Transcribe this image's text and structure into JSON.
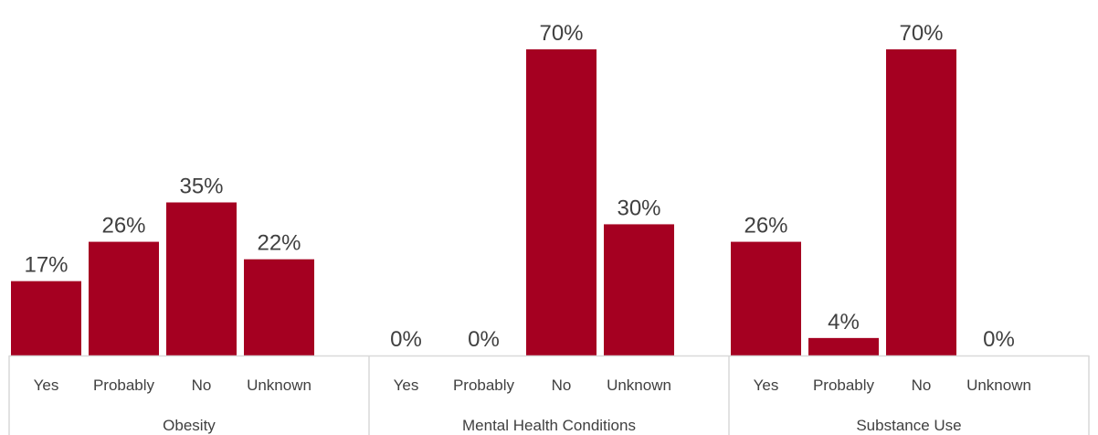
{
  "chart_data": {
    "type": "bar",
    "title": "",
    "xlabel": "",
    "ylabel": "",
    "ylim": [
      0,
      70
    ],
    "grid": false,
    "legend": "none",
    "bar_color": "#A50021",
    "axis_color": "#D9D9D9",
    "text_color": "#404040",
    "categories": [
      "Yes",
      "Probably",
      "No",
      "Unknown"
    ],
    "groups": [
      {
        "name": "Obesity",
        "values": [
          17,
          26,
          35,
          22
        ],
        "labels": [
          "17%",
          "26%",
          "35%",
          "22%"
        ]
      },
      {
        "name": "Mental Health Conditions",
        "values": [
          0,
          0,
          70,
          30
        ],
        "labels": [
          "0%",
          "0%",
          "70%",
          "30%"
        ]
      },
      {
        "name": "Substance Use",
        "values": [
          26,
          4,
          70,
          0
        ],
        "labels": [
          "26%",
          "4%",
          "70%",
          "0%"
        ]
      }
    ]
  }
}
